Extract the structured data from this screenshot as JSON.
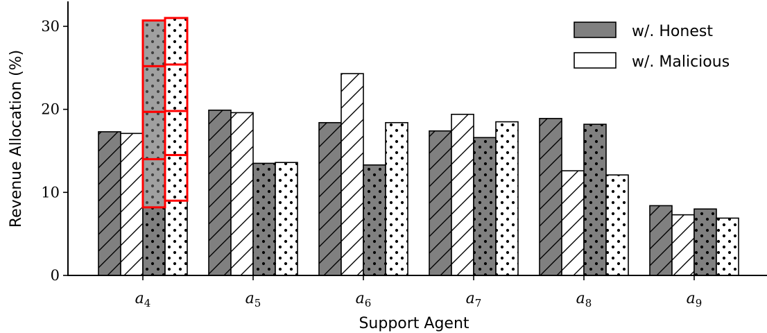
{
  "colors": {
    "honest": "#808080",
    "malicious": "#ffffff",
    "stroke": "#000000",
    "highlight": "#ff0000"
  },
  "chart_data": {
    "type": "bar",
    "xlabel": "Support Agent",
    "ylabel": "Revenue Allocation (%)",
    "ylim": [
      0,
      33
    ],
    "yticks": [
      0,
      10,
      20,
      30
    ],
    "categories": [
      "a4",
      "a5",
      "a6",
      "a7",
      "a8",
      "a9"
    ],
    "category_labels": [
      {
        "base": "a",
        "sub": "4"
      },
      {
        "base": "a",
        "sub": "5"
      },
      {
        "base": "a",
        "sub": "6"
      },
      {
        "base": "a",
        "sub": "7"
      },
      {
        "base": "a",
        "sub": "8"
      },
      {
        "base": "a",
        "sub": "9"
      }
    ],
    "legend": {
      "position": "top-right",
      "entries": [
        "w/. Honest",
        "w/. Malicious"
      ]
    },
    "bar_groups": [
      {
        "name": "w/. Honest (hatched)",
        "fill": "honest",
        "pattern": "hatch",
        "values": [
          17.3,
          19.9,
          18.4,
          17.4,
          18.9,
          8.4
        ]
      },
      {
        "name": "w/. Malicious (hatched)",
        "fill": "malicious",
        "pattern": "hatch",
        "values": [
          17.1,
          19.6,
          24.3,
          19.4,
          12.6,
          7.3
        ]
      },
      {
        "name": "w/. Honest (dotted)",
        "fill": "honest",
        "pattern": "dots",
        "values": [
          8.2,
          13.5,
          13.3,
          16.6,
          18.2,
          8.0
        ]
      },
      {
        "name": "w/. Malicious (dotted)",
        "fill": "malicious",
        "pattern": "dots",
        "values": [
          9.0,
          13.6,
          18.4,
          18.5,
          12.1,
          6.9
        ]
      }
    ],
    "stacked_highlight": {
      "category": "a4",
      "honest_segments": [
        5.8,
        5.7,
        5.5,
        5.5
      ],
      "malicious_segments": [
        5.5,
        5.3,
        5.6,
        5.6
      ]
    }
  }
}
